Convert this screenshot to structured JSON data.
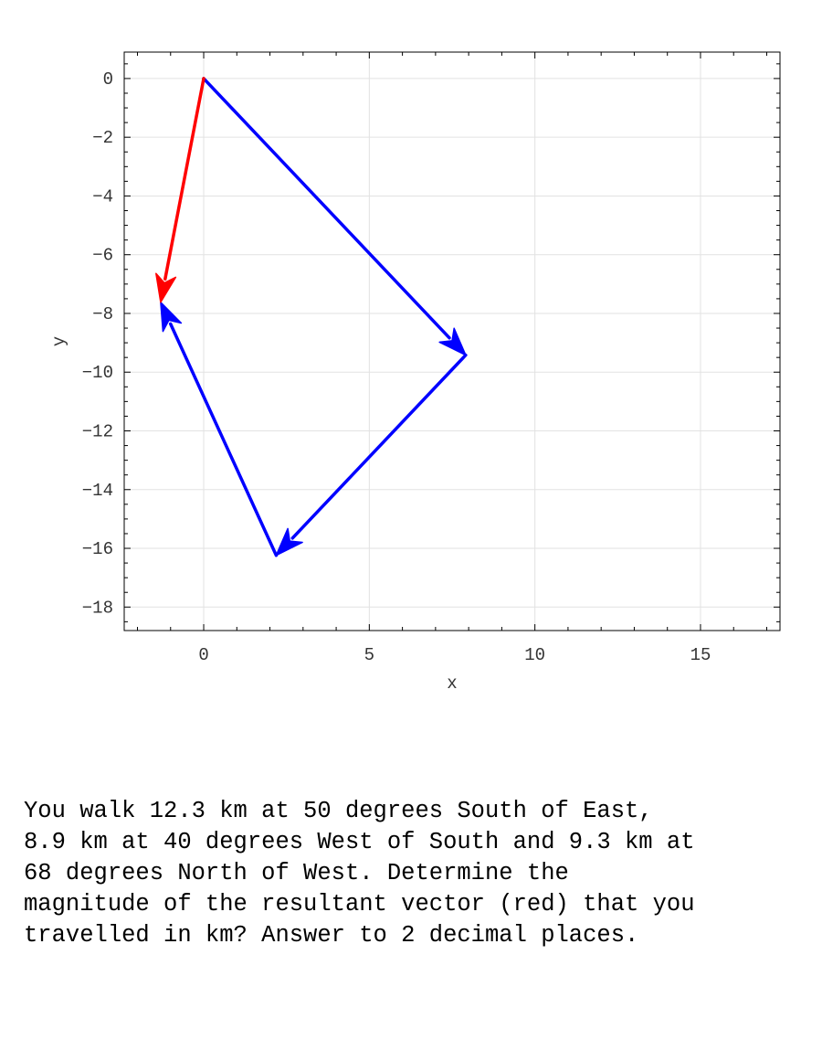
{
  "chart_data": {
    "type": "vector",
    "xlabel": "x",
    "ylabel": "y",
    "xlim": [
      -2.4,
      17.4
    ],
    "ylim": [
      -18.8,
      0.9
    ],
    "xticks": [
      0,
      5,
      10,
      15
    ],
    "yticks": [
      0,
      -2,
      -4,
      -6,
      -8,
      -10,
      -12,
      -14,
      -16,
      -18
    ],
    "grid": true,
    "vectors": [
      {
        "from": [
          0,
          0
        ],
        "to": [
          7.91,
          -9.42
        ],
        "color": "#0000ff"
      },
      {
        "from": [
          7.91,
          -9.42
        ],
        "to": [
          2.19,
          -16.24
        ],
        "color": "#0000ff"
      },
      {
        "from": [
          2.19,
          -16.24
        ],
        "to": [
          -1.3,
          -7.62
        ],
        "color": "#0000ff"
      },
      {
        "from": [
          0,
          0
        ],
        "to": [
          -1.3,
          -7.62
        ],
        "color": "#ff0000"
      }
    ]
  },
  "question": {
    "text": "You walk 12.3 km at 50 degrees South of East,\n8.9 km at 40 degrees West of South and 9.3 km at\n68 degrees North of West.  Determine the\nmagnitude of the resultant vector (red) that you\ntravelled in km? Answer to 2 decimal places."
  }
}
